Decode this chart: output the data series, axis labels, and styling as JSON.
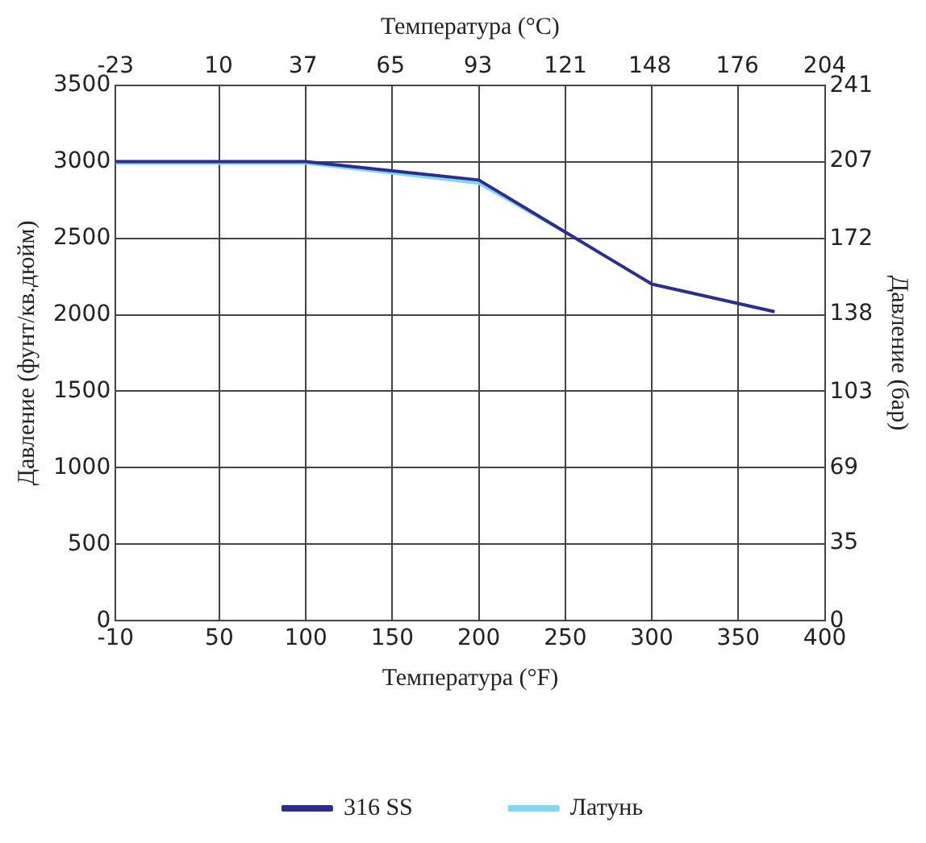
{
  "chart_data": {
    "type": "line",
    "xlabel": "Температура (°F)",
    "x2label": "Температура (°C)",
    "ylabel": "Давление (фунт/кв.дюйм)",
    "y2label": "Давление (бар)",
    "xlim": [
      -10,
      400
    ],
    "xticks": [
      -10,
      50,
      100,
      150,
      200,
      250,
      300,
      350,
      400
    ],
    "x2lim": [
      -23,
      204
    ],
    "x2ticks": [
      -23,
      10,
      37,
      65,
      93,
      121,
      148,
      176,
      204
    ],
    "ylim": [
      0,
      3500
    ],
    "yticks": [
      0,
      500,
      1000,
      1500,
      2000,
      2500,
      3000,
      3500
    ],
    "y2lim": [
      0,
      241.3
    ],
    "y2ticks": [
      0,
      35,
      69,
      103,
      138,
      172,
      207,
      241
    ],
    "grid": true,
    "legend": "bottom",
    "marker": "none",
    "line_style": "solid",
    "series": [
      {
        "name": "316 SS",
        "color": "#2b2e8c",
        "x": [
          -10,
          100,
          200,
          250,
          300,
          371
        ],
        "values": [
          3000,
          3000,
          2880,
          2540,
          2200,
          2020
        ]
      },
      {
        "name": "Латунь",
        "color": "#7fd6f5",
        "x": [
          -10,
          100,
          200,
          250
        ],
        "values": [
          2990,
          2990,
          2860,
          2540
        ]
      }
    ]
  }
}
